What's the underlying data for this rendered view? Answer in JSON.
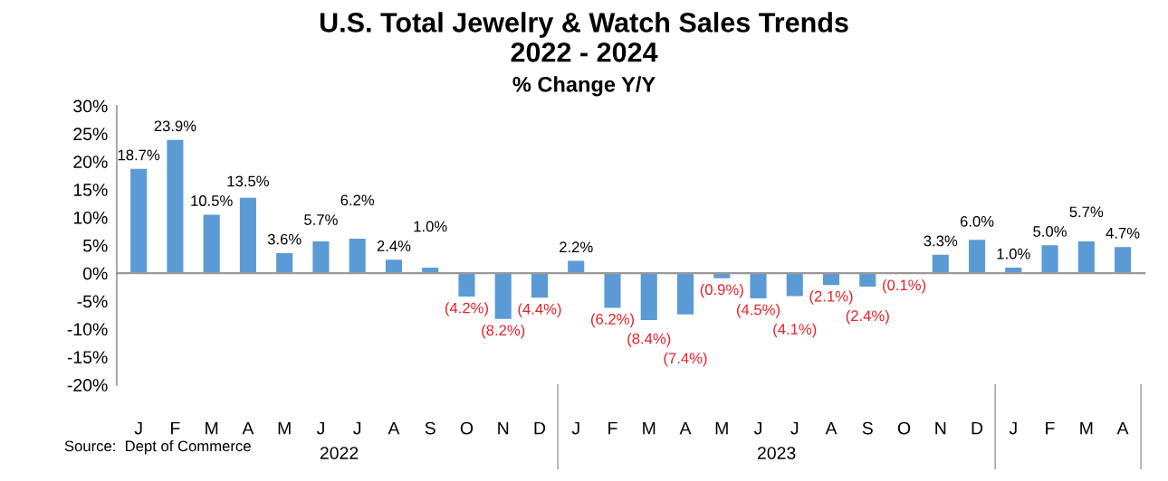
{
  "chart_data": {
    "type": "bar",
    "title": "U.S. Total Jewelry & Watch Sales Trends\n2022 - 2024",
    "subtitle": "% Change Y/Y",
    "categories": [
      "J",
      "F",
      "M",
      "A",
      "M",
      "J",
      "J",
      "A",
      "S",
      "O",
      "N",
      "D",
      "J",
      "F",
      "M",
      "A",
      "M",
      "J",
      "J",
      "A",
      "S",
      "O",
      "N",
      "D",
      "J",
      "F",
      "M",
      "A"
    ],
    "values": [
      18.7,
      23.9,
      10.5,
      13.5,
      3.6,
      5.7,
      6.2,
      2.4,
      1.0,
      -4.2,
      -8.2,
      -4.4,
      2.2,
      -6.2,
      -8.4,
      -7.4,
      -0.9,
      -4.5,
      -4.1,
      -2.1,
      -2.4,
      -0.1,
      3.3,
      6.0,
      1.0,
      5.0,
      5.7,
      4.7
    ],
    "value_labels": [
      "18.7%",
      "23.9%",
      "10.5%",
      "13.5%",
      "3.6%",
      "5.7%",
      "6.2%",
      "2.4%",
      "1.0%",
      "(4.2%)",
      "(8.2%)",
      "(4.4%)",
      "2.2%",
      "(6.2%)",
      "(8.4%)",
      "(7.4%)",
      "(0.9%)",
      "(4.5%)",
      "(4.1%)",
      "(2.1%)",
      "(2.4%)",
      "(0.1%)",
      "3.3%",
      "6.0%",
      "1.0%",
      "5.0%",
      "5.7%",
      "4.7%"
    ],
    "color": "#5b9bd5",
    "ylim": [
      -20,
      30
    ],
    "yticks": [
      {
        "value": -20,
        "label": "-20%"
      },
      {
        "value": -15,
        "label": "-15%"
      },
      {
        "value": -10,
        "label": "-10%"
      },
      {
        "value": -5,
        "label": "-5%"
      },
      {
        "value": 0,
        "label": "0%"
      },
      {
        "value": 5,
        "label": "5%"
      },
      {
        "value": 10,
        "label": "10%"
      },
      {
        "value": 15,
        "label": "15%"
      },
      {
        "value": 20,
        "label": "20%"
      },
      {
        "value": 25,
        "label": "25%"
      },
      {
        "value": 30,
        "label": "30%"
      }
    ],
    "annotations": [
      "Source:  Dept of Commerce",
      "2022",
      "2023"
    ],
    "legend": false
  }
}
